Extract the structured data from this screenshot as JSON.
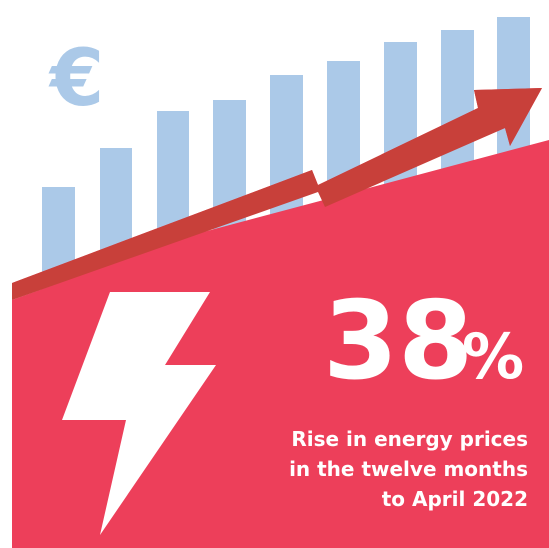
{
  "symbol": "€",
  "headline": {
    "number": "38",
    "unit": "%"
  },
  "caption": [
    "Rise in energy prices",
    "in the twelve months",
    "to April 2022"
  ]
}
